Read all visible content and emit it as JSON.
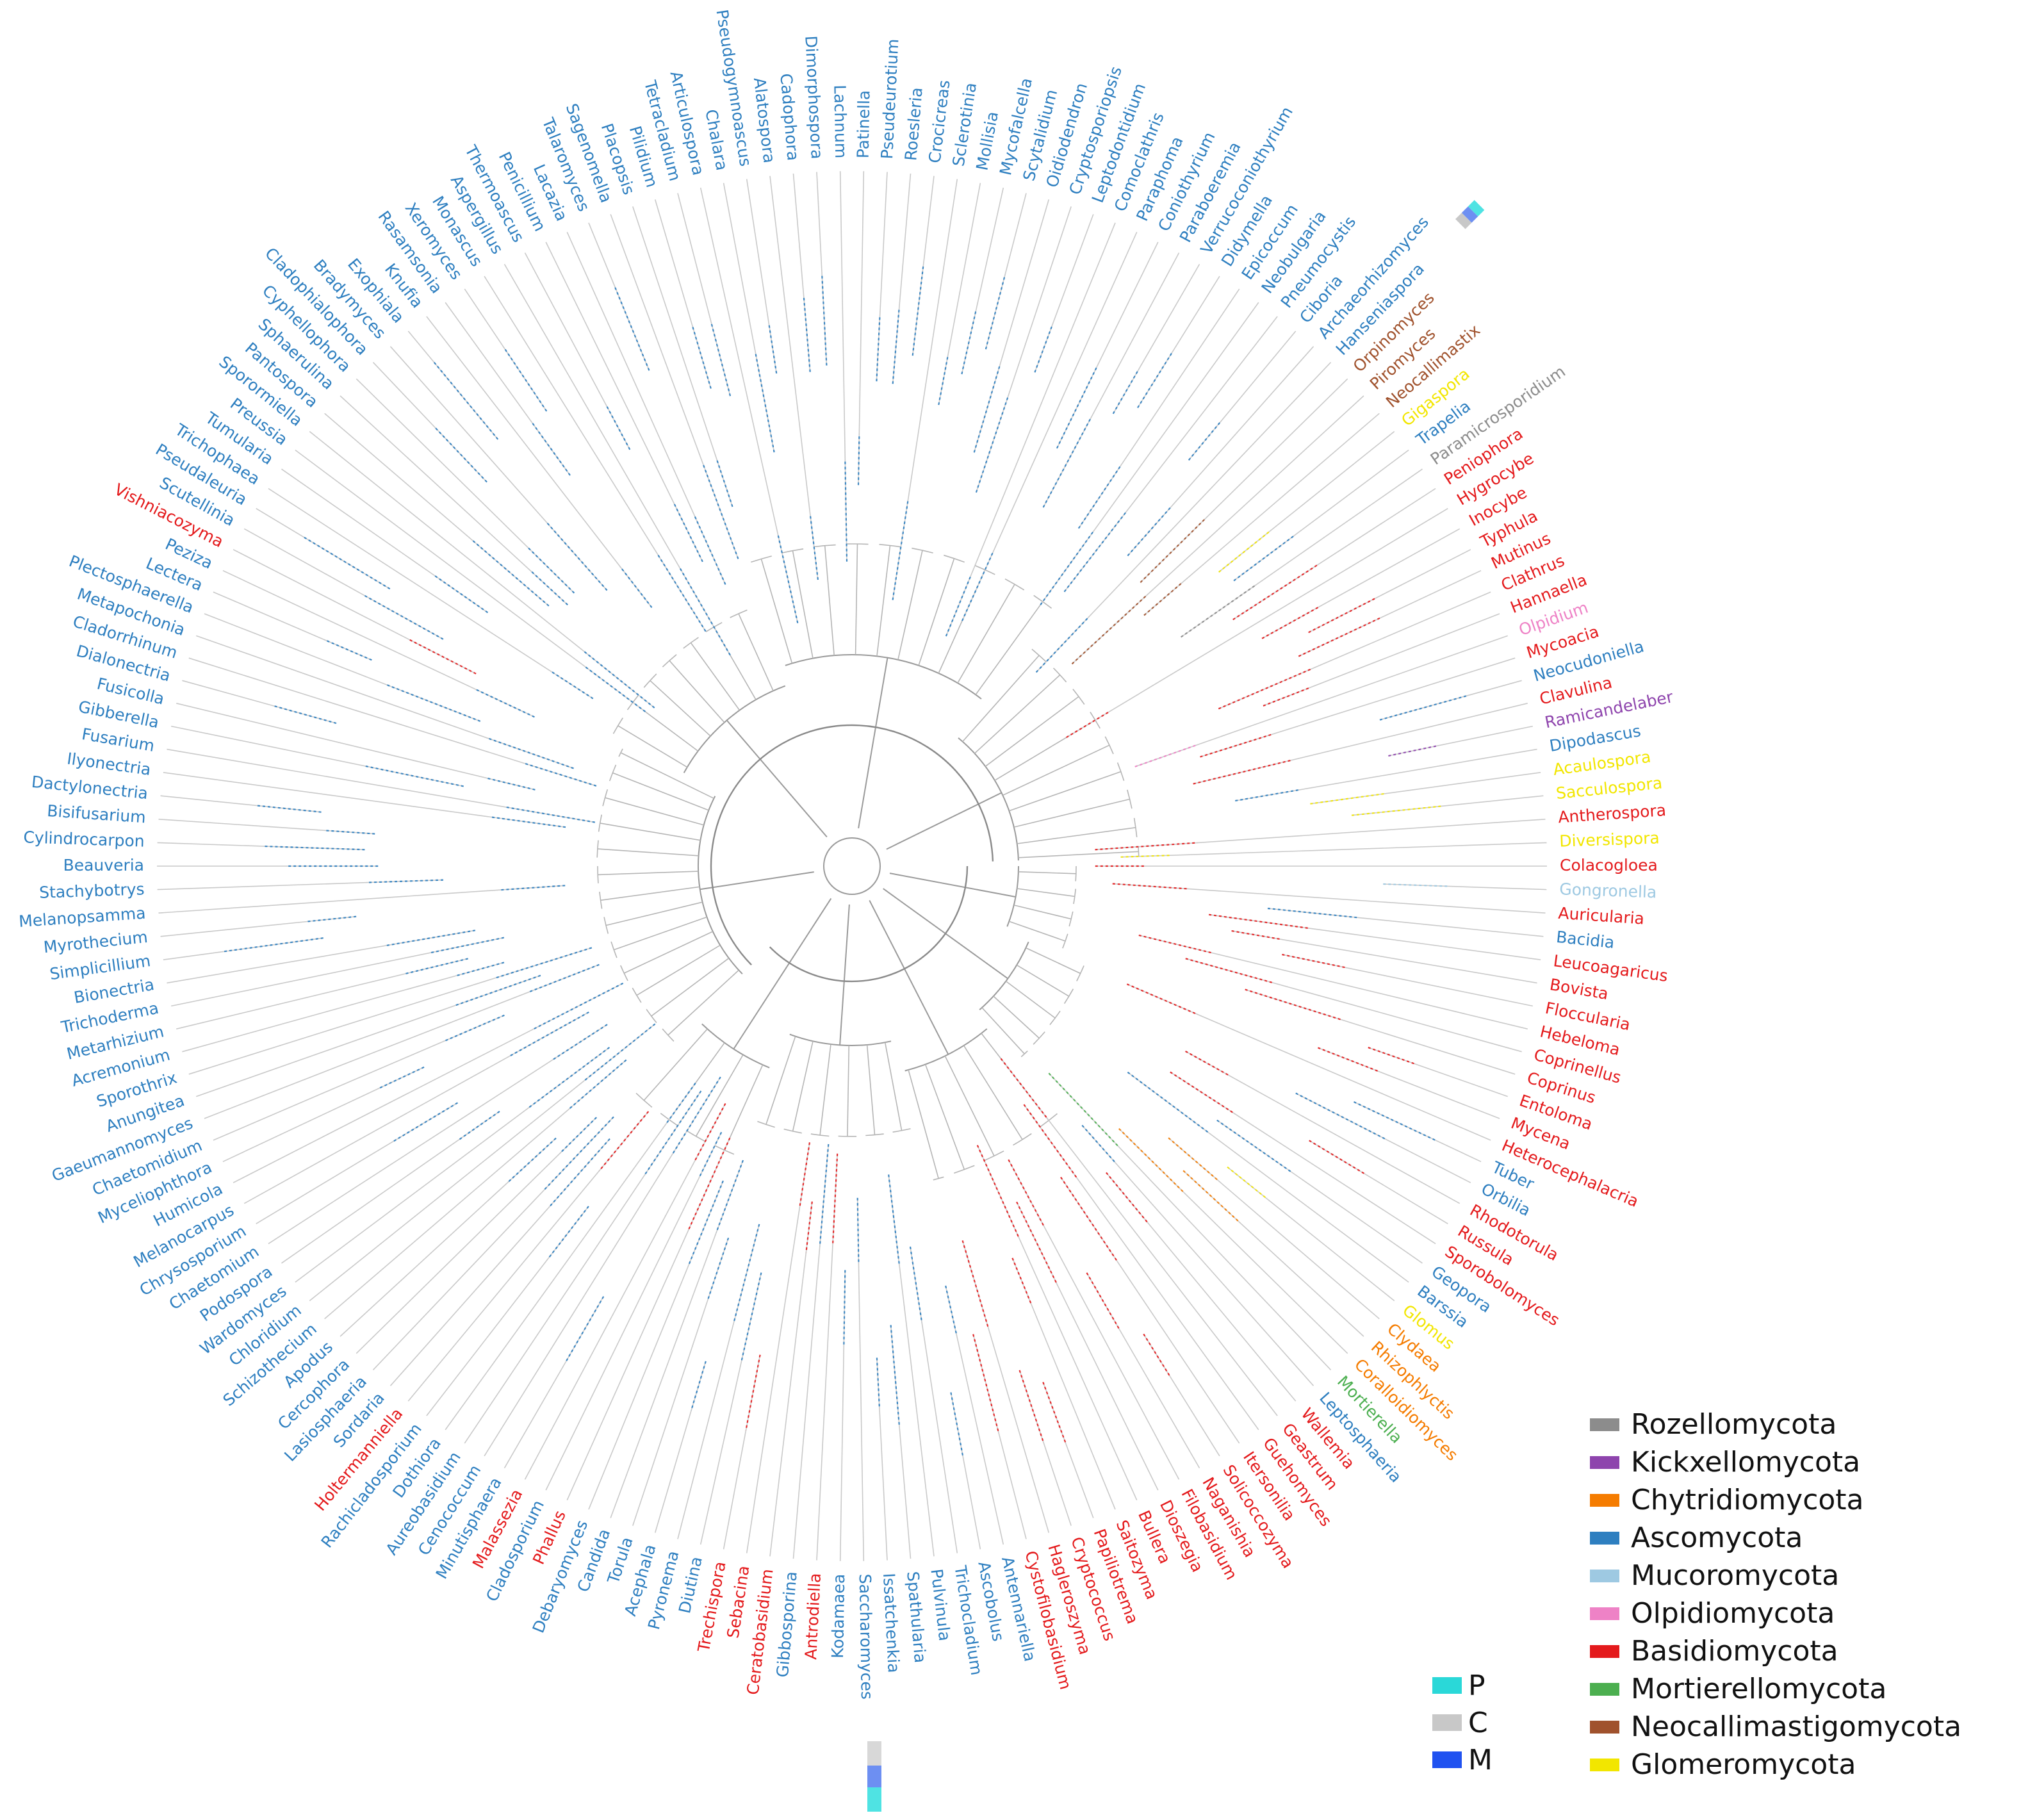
{
  "figure": {
    "title": "",
    "type": "circular phylogenetic tree of fungal genera"
  },
  "phyla": [
    {
      "key": "Rozellomycota",
      "name": "Rozellomycota",
      "color": "#8c8c8c"
    },
    {
      "key": "Kickxellomycota",
      "name": "Kickxellomycota",
      "color": "#8e44ad"
    },
    {
      "key": "Chytridiomycota",
      "name": "Chytridiomycota",
      "color": "#f57c00"
    },
    {
      "key": "Ascomycota",
      "name": "Ascomycota",
      "color": "#2e7fc0"
    },
    {
      "key": "Mucoromycota",
      "name": "Mucoromycota",
      "color": "#9ec9e2"
    },
    {
      "key": "Olpidiomycota",
      "name": "Olpidiomycota",
      "color": "#ee82c6"
    },
    {
      "key": "Basidiomycota",
      "name": "Basidiomycota",
      "color": "#e41a1c"
    },
    {
      "key": "Mortierellomycota",
      "name": "Mortierellomycota",
      "color": "#4caf50"
    },
    {
      "key": "Neocallimastigomycota",
      "name": "Neocallimastigomycota",
      "color": "#a0522d"
    },
    {
      "key": "Glomeromycota",
      "name": "Glomeromycota",
      "color": "#f2e600"
    }
  ],
  "ring_key": [
    {
      "code": "P",
      "color": "#2ad8d8"
    },
    {
      "code": "C",
      "color": "#c8c8c8"
    },
    {
      "code": "M",
      "color": "#2052f0"
    }
  ],
  "leaves": [
    {
      "name": "Colacogloea",
      "phylum": "Basidiomycota"
    },
    {
      "name": "Gongronella",
      "phylum": "Mucoromycota"
    },
    {
      "name": "Auricularia",
      "phylum": "Basidiomycota"
    },
    {
      "name": "Bacidia",
      "phylum": "Ascomycota"
    },
    {
      "name": "Leucoagaricus",
      "phylum": "Basidiomycota"
    },
    {
      "name": "Bovista",
      "phylum": "Basidiomycota"
    },
    {
      "name": "Floccularia",
      "phylum": "Basidiomycota"
    },
    {
      "name": "Hebeloma",
      "phylum": "Basidiomycota"
    },
    {
      "name": "Coprinellus",
      "phylum": "Basidiomycota"
    },
    {
      "name": "Coprinus",
      "phylum": "Basidiomycota"
    },
    {
      "name": "Entoloma",
      "phylum": "Basidiomycota"
    },
    {
      "name": "Mycena",
      "phylum": "Basidiomycota"
    },
    {
      "name": "Heterocephalacria",
      "phylum": "Basidiomycota"
    },
    {
      "name": "Tuber",
      "phylum": "Ascomycota"
    },
    {
      "name": "Orbilia",
      "phylum": "Ascomycota"
    },
    {
      "name": "Rhodotorula",
      "phylum": "Basidiomycota"
    },
    {
      "name": "Russula",
      "phylum": "Basidiomycota"
    },
    {
      "name": "Sporobolomyces",
      "phylum": "Basidiomycota"
    },
    {
      "name": "Geopora",
      "phylum": "Ascomycota"
    },
    {
      "name": "Barssia",
      "phylum": "Ascomycota"
    },
    {
      "name": "Glomus",
      "phylum": "Glomeromycota"
    },
    {
      "name": "Clydaea",
      "phylum": "Chytridiomycota"
    },
    {
      "name": "Rhizophlyctis",
      "phylum": "Chytridiomycota"
    },
    {
      "name": "Coralloidiomyces",
      "phylum": "Chytridiomycota"
    },
    {
      "name": "Mortierella",
      "phylum": "Mortierellomycota"
    },
    {
      "name": "Leptosphaeria",
      "phylum": "Ascomycota"
    },
    {
      "name": "Wallemia",
      "phylum": "Basidiomycota"
    },
    {
      "name": "Geastrum",
      "phylum": "Basidiomycota"
    },
    {
      "name": "Guehomyces",
      "phylum": "Basidiomycota"
    },
    {
      "name": "Itersonilia",
      "phylum": "Basidiomycota"
    },
    {
      "name": "Solicoccozyma",
      "phylum": "Basidiomycota"
    },
    {
      "name": "Naganishia",
      "phylum": "Basidiomycota"
    },
    {
      "name": "Filobasidium",
      "phylum": "Basidiomycota"
    },
    {
      "name": "Dioszegia",
      "phylum": "Basidiomycota"
    },
    {
      "name": "Bullera",
      "phylum": "Basidiomycota"
    },
    {
      "name": "Saitozyma",
      "phylum": "Basidiomycota"
    },
    {
      "name": "Papiliotrema",
      "phylum": "Basidiomycota"
    },
    {
      "name": "Cryptococcus",
      "phylum": "Basidiomycota"
    },
    {
      "name": "Hagleroszyma",
      "phylum": "Basidiomycota"
    },
    {
      "name": "Cystofilobasidium",
      "phylum": "Basidiomycota"
    },
    {
      "name": "Antennariella",
      "phylum": "Ascomycota"
    },
    {
      "name": "Ascobolus",
      "phylum": "Ascomycota"
    },
    {
      "name": "Trichocladium",
      "phylum": "Ascomycota"
    },
    {
      "name": "Pulvinula",
      "phylum": "Ascomycota"
    },
    {
      "name": "Spathularia",
      "phylum": "Ascomycota"
    },
    {
      "name": "Issatchenkia",
      "phylum": "Ascomycota"
    },
    {
      "name": "Saccharomyces",
      "phylum": "Ascomycota"
    },
    {
      "name": "Kodamaea",
      "phylum": "Ascomycota"
    },
    {
      "name": "Antrodiella",
      "phylum": "Basidiomycota"
    },
    {
      "name": "Gibbosporina",
      "phylum": "Ascomycota"
    },
    {
      "name": "Ceratobasidium",
      "phylum": "Basidiomycota"
    },
    {
      "name": "Sebacina",
      "phylum": "Basidiomycota"
    },
    {
      "name": "Trechispora",
      "phylum": "Basidiomycota"
    },
    {
      "name": "Diutina",
      "phylum": "Ascomycota"
    },
    {
      "name": "Pyronema",
      "phylum": "Ascomycota"
    },
    {
      "name": "Acephala",
      "phylum": "Ascomycota"
    },
    {
      "name": "Torula",
      "phylum": "Ascomycota"
    },
    {
      "name": "Candida",
      "phylum": "Ascomycota"
    },
    {
      "name": "Debaryomyces",
      "phylum": "Ascomycota"
    },
    {
      "name": "Phallus",
      "phylum": "Basidiomycota"
    },
    {
      "name": "Cladosporium",
      "phylum": "Ascomycota"
    },
    {
      "name": "Malassezia",
      "phylum": "Basidiomycota"
    },
    {
      "name": "Minutisphaera",
      "phylum": "Ascomycota"
    },
    {
      "name": "Cenococcum",
      "phylum": "Ascomycota"
    },
    {
      "name": "Aureobasidium",
      "phylum": "Ascomycota"
    },
    {
      "name": "Dothiora",
      "phylum": "Ascomycota"
    },
    {
      "name": "Rachicladosporium",
      "phylum": "Ascomycota"
    },
    {
      "name": "Holtermanniella",
      "phylum": "Basidiomycota"
    },
    {
      "name": "Sordaria",
      "phylum": "Ascomycota"
    },
    {
      "name": "Lasiosphaeria",
      "phylum": "Ascomycota"
    },
    {
      "name": "Cercophora",
      "phylum": "Ascomycota"
    },
    {
      "name": "Apodus",
      "phylum": "Ascomycota"
    },
    {
      "name": "Schizothecium",
      "phylum": "Ascomycota"
    },
    {
      "name": "Chloridium",
      "phylum": "Ascomycota"
    },
    {
      "name": "Wardomyces",
      "phylum": "Ascomycota"
    },
    {
      "name": "Podospora",
      "phylum": "Ascomycota"
    },
    {
      "name": "Chaetomium",
      "phylum": "Ascomycota"
    },
    {
      "name": "Chrysosporium",
      "phylum": "Ascomycota"
    },
    {
      "name": "Melanocarpus",
      "phylum": "Ascomycota"
    },
    {
      "name": "Humicola",
      "phylum": "Ascomycota"
    },
    {
      "name": "Myceliophthora",
      "phylum": "Ascomycota"
    },
    {
      "name": "Chaetomidium",
      "phylum": "Ascomycota"
    },
    {
      "name": "Gaeumannomyces",
      "phylum": "Ascomycota"
    },
    {
      "name": "Anungitea",
      "phylum": "Ascomycota"
    },
    {
      "name": "Sporothrix",
      "phylum": "Ascomycota"
    },
    {
      "name": "Acremonium",
      "phylum": "Ascomycota"
    },
    {
      "name": "Metarhizium",
      "phylum": "Ascomycota"
    },
    {
      "name": "Trichoderma",
      "phylum": "Ascomycota"
    },
    {
      "name": "Bionectria",
      "phylum": "Ascomycota"
    },
    {
      "name": "Simplicillium",
      "phylum": "Ascomycota"
    },
    {
      "name": "Myrothecium",
      "phylum": "Ascomycota"
    },
    {
      "name": "Melanopsamma",
      "phylum": "Ascomycota"
    },
    {
      "name": "Stachybotrys",
      "phylum": "Ascomycota"
    },
    {
      "name": "Beauveria",
      "phylum": "Ascomycota"
    },
    {
      "name": "Cylindrocarpon",
      "phylum": "Ascomycota"
    },
    {
      "name": "Bisifusarium",
      "phylum": "Ascomycota"
    },
    {
      "name": "Dactylonectria",
      "phylum": "Ascomycota"
    },
    {
      "name": "Ilyonectria",
      "phylum": "Ascomycota"
    },
    {
      "name": "Fusarium",
      "phylum": "Ascomycota"
    },
    {
      "name": "Gibberella",
      "phylum": "Ascomycota"
    },
    {
      "name": "Fusicolla",
      "phylum": "Ascomycota"
    },
    {
      "name": "Dialonectria",
      "phylum": "Ascomycota"
    },
    {
      "name": "Cladorrhinum",
      "phylum": "Ascomycota"
    },
    {
      "name": "Metapochonia",
      "phylum": "Ascomycota"
    },
    {
      "name": "Plectosphaerella",
      "phylum": "Ascomycota"
    },
    {
      "name": "Lectera",
      "phylum": "Ascomycota"
    },
    {
      "name": "Peziza",
      "phylum": "Ascomycota"
    },
    {
      "name": "Vishniacozyma",
      "phylum": "Basidiomycota"
    },
    {
      "name": "Scutellinia",
      "phylum": "Ascomycota"
    },
    {
      "name": "Pseudaleuria",
      "phylum": "Ascomycota"
    },
    {
      "name": "Trichophaea",
      "phylum": "Ascomycota"
    },
    {
      "name": "Tumularia",
      "phylum": "Ascomycota"
    },
    {
      "name": "Preussia",
      "phylum": "Ascomycota"
    },
    {
      "name": "Sporormiella",
      "phylum": "Ascomycota"
    },
    {
      "name": "Pantospora",
      "phylum": "Ascomycota"
    },
    {
      "name": "Sphaerulina",
      "phylum": "Ascomycota"
    },
    {
      "name": "Cyphellophora",
      "phylum": "Ascomycota"
    },
    {
      "name": "Cladophialophora",
      "phylum": "Ascomycota"
    },
    {
      "name": "Bradymyces",
      "phylum": "Ascomycota"
    },
    {
      "name": "Exophiala",
      "phylum": "Ascomycota"
    },
    {
      "name": "Knufia",
      "phylum": "Ascomycota"
    },
    {
      "name": "Rasamsonia",
      "phylum": "Ascomycota"
    },
    {
      "name": "Xeromyces",
      "phylum": "Ascomycota"
    },
    {
      "name": "Monascus",
      "phylum": "Ascomycota"
    },
    {
      "name": "Aspergillus",
      "phylum": "Ascomycota"
    },
    {
      "name": "Thermoascus",
      "phylum": "Ascomycota"
    },
    {
      "name": "Penicillium",
      "phylum": "Ascomycota"
    },
    {
      "name": "Lacazia",
      "phylum": "Ascomycota"
    },
    {
      "name": "Talaromyces",
      "phylum": "Ascomycota"
    },
    {
      "name": "Sagenomella",
      "phylum": "Ascomycota"
    },
    {
      "name": "Placopsis",
      "phylum": "Ascomycota"
    },
    {
      "name": "Pilidium",
      "phylum": "Ascomycota"
    },
    {
      "name": "Tetracladium",
      "phylum": "Ascomycota"
    },
    {
      "name": "Articulospora",
      "phylum": "Ascomycota"
    },
    {
      "name": "Chalara",
      "phylum": "Ascomycota"
    },
    {
      "name": "Pseudogymnoascus",
      "phylum": "Ascomycota"
    },
    {
      "name": "Alatospora",
      "phylum": "Ascomycota"
    },
    {
      "name": "Cadophora",
      "phylum": "Ascomycota"
    },
    {
      "name": "Dimorphospora",
      "phylum": "Ascomycota"
    },
    {
      "name": "Lachnum",
      "phylum": "Ascomycota"
    },
    {
      "name": "Patinella",
      "phylum": "Ascomycota"
    },
    {
      "name": "Pseudeurotium",
      "phylum": "Ascomycota"
    },
    {
      "name": "Roesleria",
      "phylum": "Ascomycota"
    },
    {
      "name": "Crocicreas",
      "phylum": "Ascomycota"
    },
    {
      "name": "Sclerotinia",
      "phylum": "Ascomycota"
    },
    {
      "name": "Mollisia",
      "phylum": "Ascomycota"
    },
    {
      "name": "Mycofalcella",
      "phylum": "Ascomycota"
    },
    {
      "name": "Scytalidium",
      "phylum": "Ascomycota"
    },
    {
      "name": "Oidiodendron",
      "phylum": "Ascomycota"
    },
    {
      "name": "Cryptosporiopsis",
      "phylum": "Ascomycota"
    },
    {
      "name": "Leptodontidium",
      "phylum": "Ascomycota"
    },
    {
      "name": "Comoclathris",
      "phylum": "Ascomycota"
    },
    {
      "name": "Paraphoma",
      "phylum": "Ascomycota"
    },
    {
      "name": "Coniothyrium",
      "phylum": "Ascomycota"
    },
    {
      "name": "Paraboeremia",
      "phylum": "Ascomycota"
    },
    {
      "name": "Verrucoconiothyrium",
      "phylum": "Ascomycota"
    },
    {
      "name": "Didymella",
      "phylum": "Ascomycota"
    },
    {
      "name": "Epicoccum",
      "phylum": "Ascomycota"
    },
    {
      "name": "Neobulgaria",
      "phylum": "Ascomycota"
    },
    {
      "name": "Pneumocystis",
      "phylum": "Ascomycota"
    },
    {
      "name": "Ciboria",
      "phylum": "Ascomycota"
    },
    {
      "name": "Archaeorhizomyces",
      "phylum": "Ascomycota"
    },
    {
      "name": "Hanseniaspora",
      "phylum": "Ascomycota"
    },
    {
      "name": "Orpinomyces",
      "phylum": "Neocallimastigomycota"
    },
    {
      "name": "Piromyces",
      "phylum": "Neocallimastigomycota"
    },
    {
      "name": "Neocallimastix",
      "phylum": "Neocallimastigomycota"
    },
    {
      "name": "Gigaspora",
      "phylum": "Glomeromycota"
    },
    {
      "name": "Trapelia",
      "phylum": "Ascomycota"
    },
    {
      "name": "Paramicrosporidium",
      "phylum": "Rozellomycota"
    },
    {
      "name": "Peniophora",
      "phylum": "Basidiomycota"
    },
    {
      "name": "Hygrocybe",
      "phylum": "Basidiomycota"
    },
    {
      "name": "Inocybe",
      "phylum": "Basidiomycota"
    },
    {
      "name": "Typhula",
      "phylum": "Basidiomycota"
    },
    {
      "name": "Mutinus",
      "phylum": "Basidiomycota"
    },
    {
      "name": "Clathrus",
      "phylum": "Basidiomycota"
    },
    {
      "name": "Hannaella",
      "phylum": "Basidiomycota"
    },
    {
      "name": "Olpidium",
      "phylum": "Olpidiomycota"
    },
    {
      "name": "Mycoacia",
      "phylum": "Basidiomycota"
    },
    {
      "name": "Neocudoniella",
      "phylum": "Ascomycota"
    },
    {
      "name": "Clavulina",
      "phylum": "Basidiomycota"
    },
    {
      "name": "Ramicandelaber",
      "phylum": "Kickxellomycota"
    },
    {
      "name": "Dipodascus",
      "phylum": "Ascomycota"
    },
    {
      "name": "Acaulospora",
      "phylum": "Glomeromycota"
    },
    {
      "name": "Sacculospora",
      "phylum": "Glomeromycota"
    },
    {
      "name": "Antherospora",
      "phylum": "Basidiomycota"
    },
    {
      "name": "Diversispora",
      "phylum": "Glomeromycota"
    }
  ]
}
